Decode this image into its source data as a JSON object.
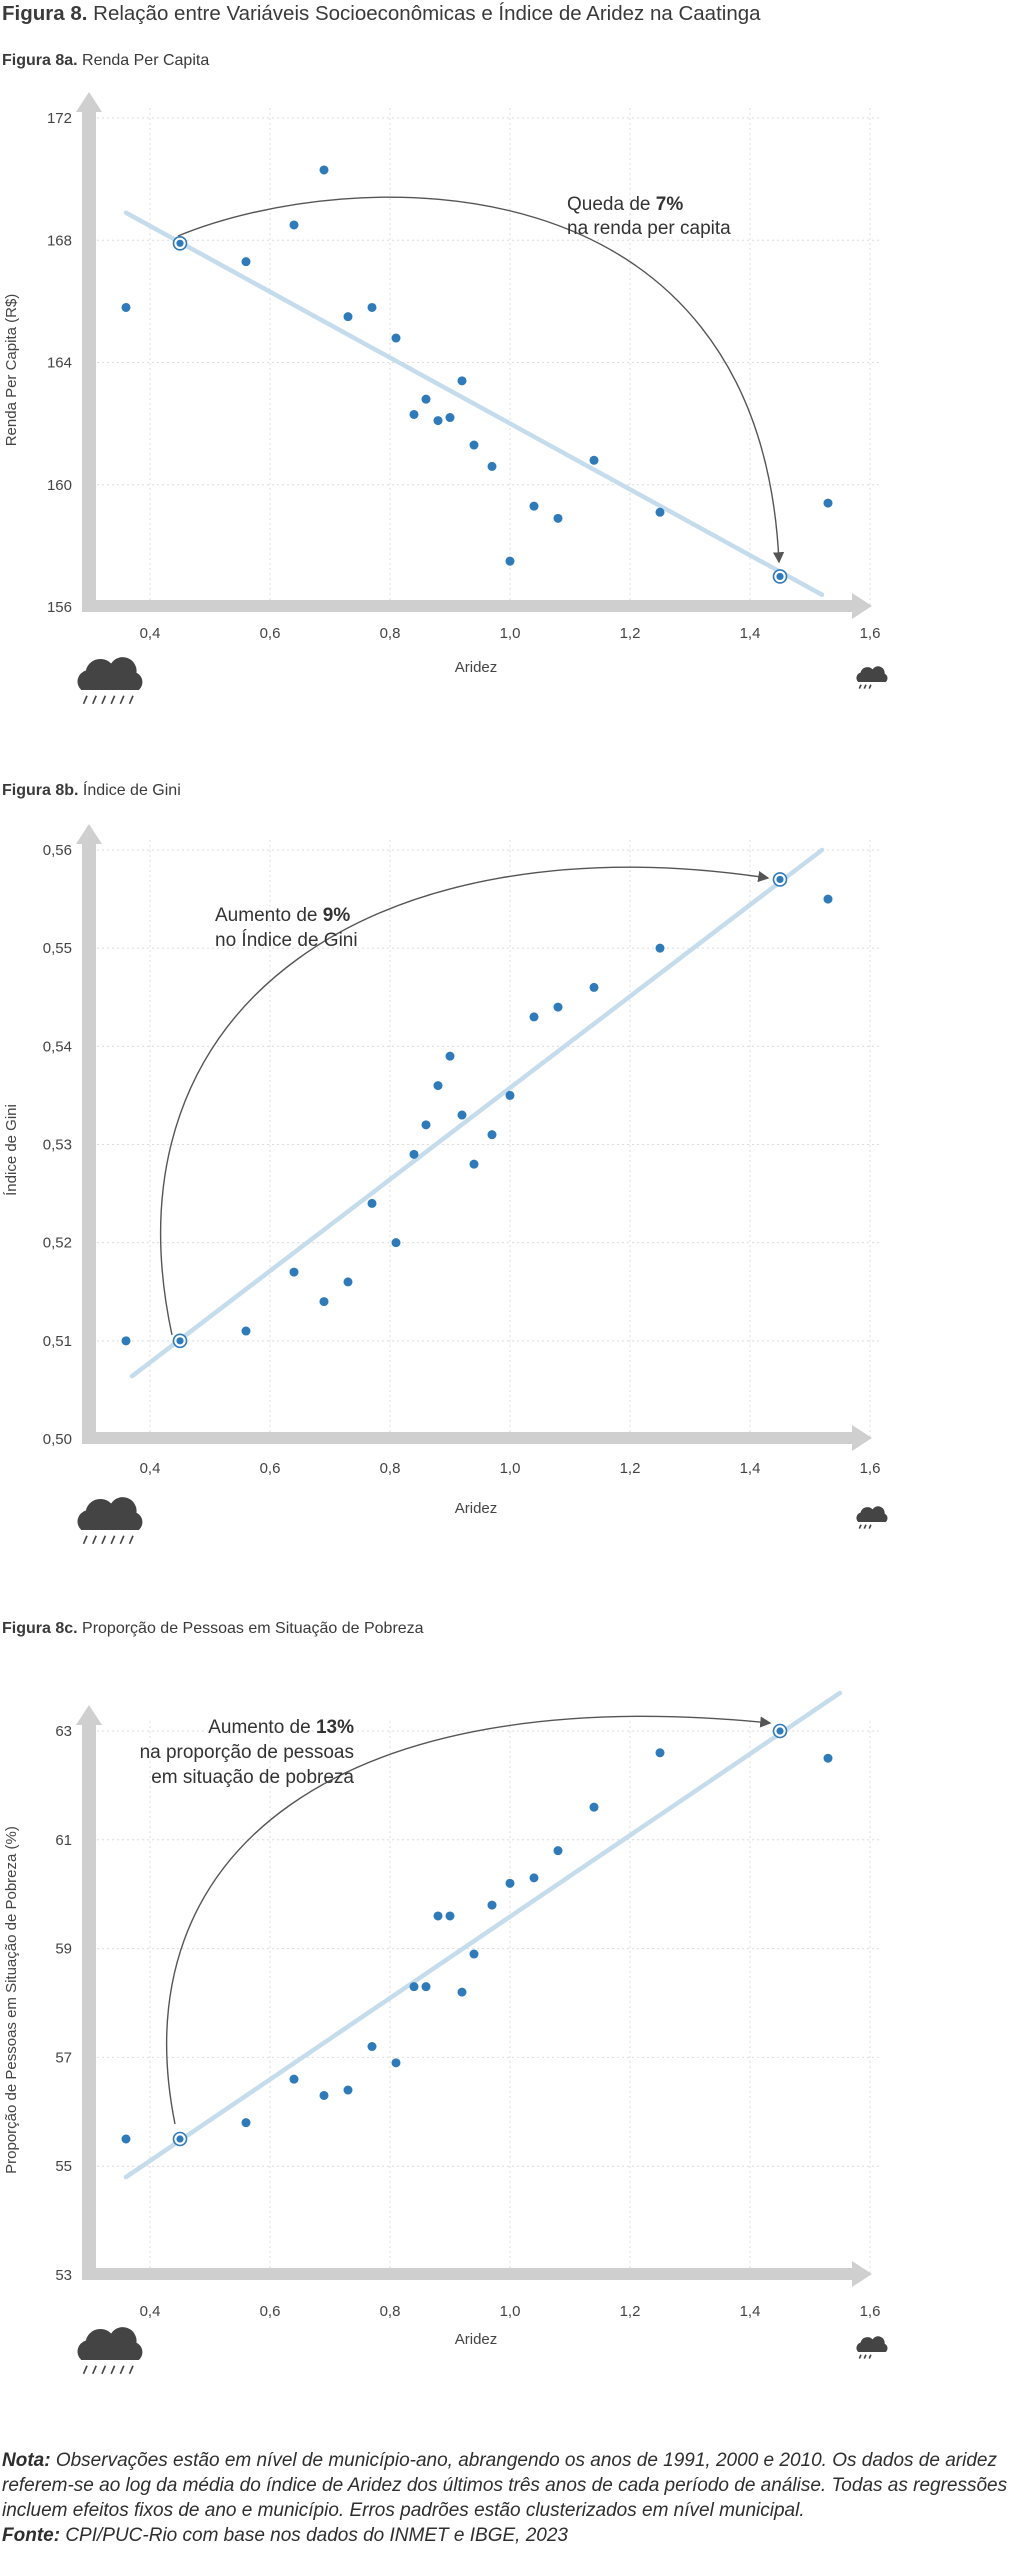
{
  "figure": {
    "label": "Figura 8.",
    "title": "Relação entre Variáveis Socioeconômicas e Índice de Aridez na Caatinga"
  },
  "colors": {
    "points": "#2f7ab8",
    "regression_line": "#c5dcec",
    "axis_arrow": "#cfcfcf",
    "grid": "#dcdcdc",
    "annotation_arc": "#555555",
    "icon": "#444444"
  },
  "icons": {
    "left": "rain-cloud-icon",
    "right": "light-rain-cloud-icon"
  },
  "chart_data": [
    {
      "type": "scatter",
      "panel_label": "Figura 8a.",
      "title": "Renda Per Capita",
      "xlabel": "Aridez",
      "ylabel": "Renda Per Capita (R$)",
      "xlim": [
        0.3,
        1.6
      ],
      "ylim": [
        156,
        172
      ],
      "xticks": [
        "0,4",
        "0,6",
        "0,8",
        "1,0",
        "1,2",
        "1,4",
        "1,6"
      ],
      "yticks": [
        "156",
        "160",
        "164",
        "168",
        "172"
      ],
      "grid": true,
      "points": [
        {
          "x": 0.36,
          "y": 165.8
        },
        {
          "x": 0.56,
          "y": 167.3
        },
        {
          "x": 0.64,
          "y": 168.5
        },
        {
          "x": 0.69,
          "y": 170.3
        },
        {
          "x": 0.73,
          "y": 165.5
        },
        {
          "x": 0.77,
          "y": 165.8
        },
        {
          "x": 0.81,
          "y": 164.8
        },
        {
          "x": 0.84,
          "y": 162.3
        },
        {
          "x": 0.86,
          "y": 162.8
        },
        {
          "x": 0.88,
          "y": 162.1
        },
        {
          "x": 0.9,
          "y": 162.2
        },
        {
          "x": 0.92,
          "y": 163.4
        },
        {
          "x": 0.94,
          "y": 161.3
        },
        {
          "x": 0.97,
          "y": 160.6
        },
        {
          "x": 1.0,
          "y": 157.5
        },
        {
          "x": 1.04,
          "y": 159.3
        },
        {
          "x": 1.08,
          "y": 158.9
        },
        {
          "x": 1.14,
          "y": 160.8
        },
        {
          "x": 1.25,
          "y": 159.1
        },
        {
          "x": 1.53,
          "y": 159.4
        }
      ],
      "regression": {
        "x": [
          0.36,
          1.52
        ],
        "y": [
          168.9,
          156.4
        ]
      },
      "highlight_points": [
        {
          "x": 0.45,
          "y": 167.9
        },
        {
          "x": 1.45,
          "y": 157.0
        }
      ],
      "annotation": {
        "pre": "Queda de ",
        "bold": "7%",
        "line2": "na renda per capita"
      }
    },
    {
      "type": "scatter",
      "panel_label": "Figura 8b.",
      "title": "Índice de Gini",
      "xlabel": "Aridez",
      "ylabel": "Índice de Gini",
      "xlim": [
        0.3,
        1.6
      ],
      "ylim": [
        0.5,
        0.56
      ],
      "xticks": [
        "0,4",
        "0,6",
        "0,8",
        "1,0",
        "1,2",
        "1,4",
        "1,6"
      ],
      "yticks": [
        "0,50",
        "0,51",
        "0,52",
        "0,53",
        "0,54",
        "0,55",
        "0,56"
      ],
      "grid": true,
      "points": [
        {
          "x": 0.36,
          "y": 0.51
        },
        {
          "x": 0.56,
          "y": 0.511
        },
        {
          "x": 0.64,
          "y": 0.517
        },
        {
          "x": 0.69,
          "y": 0.514
        },
        {
          "x": 0.73,
          "y": 0.516
        },
        {
          "x": 0.77,
          "y": 0.524
        },
        {
          "x": 0.81,
          "y": 0.52
        },
        {
          "x": 0.84,
          "y": 0.529
        },
        {
          "x": 0.86,
          "y": 0.532
        },
        {
          "x": 0.88,
          "y": 0.536
        },
        {
          "x": 0.9,
          "y": 0.539
        },
        {
          "x": 0.92,
          "y": 0.533
        },
        {
          "x": 0.94,
          "y": 0.528
        },
        {
          "x": 0.97,
          "y": 0.531
        },
        {
          "x": 1.0,
          "y": 0.535
        },
        {
          "x": 1.04,
          "y": 0.543
        },
        {
          "x": 1.08,
          "y": 0.544
        },
        {
          "x": 1.14,
          "y": 0.546
        },
        {
          "x": 1.25,
          "y": 0.55
        },
        {
          "x": 1.53,
          "y": 0.555
        }
      ],
      "regression": {
        "x": [
          0.37,
          1.52
        ],
        "y": [
          0.5064,
          0.56
        ]
      },
      "highlight_points": [
        {
          "x": 0.45,
          "y": 0.51
        },
        {
          "x": 1.45,
          "y": 0.557
        }
      ],
      "annotation": {
        "pre": "Aumento de ",
        "bold": "9%",
        "line2": "no Índice de Gini"
      }
    },
    {
      "type": "scatter",
      "panel_label": "Figura 8c.",
      "title": "Proporção de Pessoas em Situação de Pobreza",
      "xlabel": "Aridez",
      "ylabel": "Proporção de Pessoas em Situação de Pobreza (%)",
      "xlim": [
        0.3,
        1.6
      ],
      "ylim": [
        53,
        63
      ],
      "xticks": [
        "0,4",
        "0,6",
        "0,8",
        "1,0",
        "1,2",
        "1,4",
        "1,6"
      ],
      "yticks": [
        "53",
        "55",
        "57",
        "59",
        "61",
        "63"
      ],
      "grid": true,
      "points": [
        {
          "x": 0.36,
          "y": 55.5
        },
        {
          "x": 0.56,
          "y": 55.8
        },
        {
          "x": 0.64,
          "y": 56.6
        },
        {
          "x": 0.69,
          "y": 56.3
        },
        {
          "x": 0.73,
          "y": 56.4
        },
        {
          "x": 0.77,
          "y": 57.2
        },
        {
          "x": 0.81,
          "y": 56.9
        },
        {
          "x": 0.84,
          "y": 58.3
        },
        {
          "x": 0.86,
          "y": 58.3
        },
        {
          "x": 0.88,
          "y": 59.6
        },
        {
          "x": 0.9,
          "y": 59.6
        },
        {
          "x": 0.92,
          "y": 58.2
        },
        {
          "x": 0.94,
          "y": 58.9
        },
        {
          "x": 0.97,
          "y": 59.8
        },
        {
          "x": 1.0,
          "y": 60.2
        },
        {
          "x": 1.04,
          "y": 60.3
        },
        {
          "x": 1.08,
          "y": 60.8
        },
        {
          "x": 1.14,
          "y": 61.6
        },
        {
          "x": 1.25,
          "y": 62.6
        },
        {
          "x": 1.53,
          "y": 62.5
        }
      ],
      "regression": {
        "x": [
          0.36,
          1.55
        ],
        "y": [
          54.8,
          63.7
        ]
      },
      "highlight_points": [
        {
          "x": 0.45,
          "y": 55.5
        },
        {
          "x": 1.45,
          "y": 63.0
        }
      ],
      "annotation": {
        "pre": "Aumento de ",
        "bold": "13%",
        "line2": "na proporção de pessoas",
        "line3": "em situação de pobreza"
      }
    }
  ],
  "note": {
    "label": "Nota:",
    "text": " Observações estão em nível de município-ano, abrangendo os anos de 1991, 2000 e 2010. Os dados de aridez referem-se ao log da média do índice de Aridez dos últimos três anos de cada período de análise. Todas as regressões incluem efeitos fixos de ano e município. Erros padrões estão clusterizados  em nível municipal."
  },
  "source": {
    "label": "Fonte:",
    "text": " CPI/PUC-Rio com base nos dados do INMET e IBGE, 2023"
  }
}
